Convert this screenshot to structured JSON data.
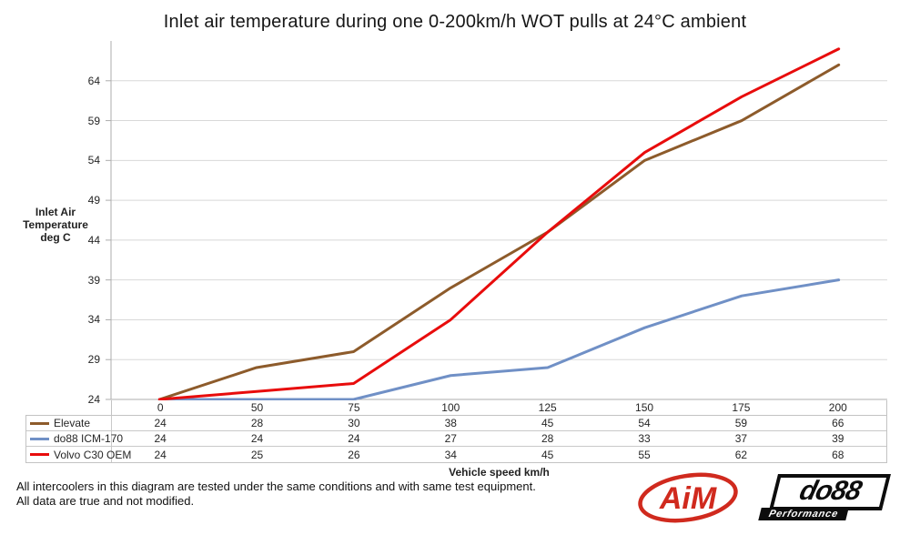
{
  "chart_data": {
    "type": "line",
    "title": "Inlet air temperature during one 0-200km/h WOT pulls at 24°C ambient",
    "categories": [
      "0",
      "50",
      "75",
      "100",
      "125",
      "150",
      "175",
      "200"
    ],
    "xlabel": "Vehicle speed km/h",
    "ylabel_lines": [
      "Inlet Air",
      "Temperature",
      "deg C"
    ],
    "yticks": [
      24,
      29,
      34,
      39,
      44,
      49,
      54,
      59,
      64
    ],
    "ylim": [
      24,
      69
    ],
    "grid": "horizontal-major",
    "legend_position": "data-table-left",
    "series": [
      {
        "name": "Elevate",
        "color": "#8D5B2B",
        "values": [
          24,
          28,
          30,
          38,
          45,
          54,
          59,
          66
        ]
      },
      {
        "name": "do88 ICM-170",
        "color": "#7090C6",
        "values": [
          24,
          24,
          24,
          27,
          28,
          33,
          37,
          39
        ]
      },
      {
        "name": "Volvo C30 OEM",
        "color": "#E80C0C",
        "values": [
          24,
          25,
          26,
          34,
          45,
          55,
          62,
          68
        ]
      }
    ]
  },
  "footer": {
    "line1": "All intercoolers in this diagram are tested under the same conditions and with same test equipment.",
    "line2": "All data are true and not modified."
  },
  "logos": {
    "aim": {
      "text": "AiM",
      "color": "#D02A1E"
    },
    "do88": {
      "text": "do88",
      "subtext": "Performance",
      "color": "#0D0D0D"
    }
  },
  "colors": {
    "grid": "#D8D8D8",
    "axis": "#ADADAD",
    "table_border": "#C3C3C3",
    "text": "#262626"
  }
}
